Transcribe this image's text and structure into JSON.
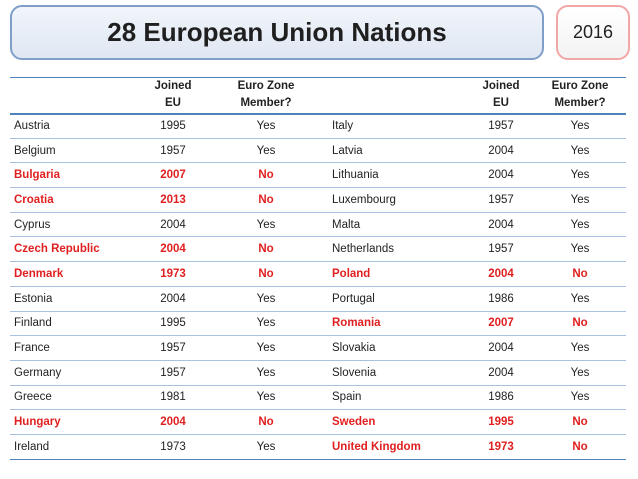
{
  "header": {
    "title": "28 European Union Nations",
    "year": "2016"
  },
  "table": {
    "columns": {
      "joined_line1": "Joined",
      "joined_line2": "EU",
      "euro_line1": "Euro Zone",
      "euro_line2": "Member?"
    },
    "highlight_color": "#e02020",
    "rows": [
      {
        "left": {
          "country": "Austria",
          "joined": "1995",
          "euro": "Yes",
          "highlight": false
        },
        "right": {
          "country": "Italy",
          "joined": "1957",
          "euro": "Yes",
          "highlight": false
        }
      },
      {
        "left": {
          "country": "Belgium",
          "joined": "1957",
          "euro": "Yes",
          "highlight": false
        },
        "right": {
          "country": "Latvia",
          "joined": "2004",
          "euro": "Yes",
          "highlight": false
        }
      },
      {
        "left": {
          "country": "Bulgaria",
          "joined": "2007",
          "euro": "No",
          "highlight": true
        },
        "right": {
          "country": "Lithuania",
          "joined": "2004",
          "euro": "Yes",
          "highlight": false
        }
      },
      {
        "left": {
          "country": "Croatia",
          "joined": "2013",
          "euro": "No",
          "highlight": true
        },
        "right": {
          "country": "Luxembourg",
          "joined": "1957",
          "euro": "Yes",
          "highlight": false
        }
      },
      {
        "left": {
          "country": "Cyprus",
          "joined": "2004",
          "euro": "Yes",
          "highlight": false
        },
        "right": {
          "country": "Malta",
          "joined": "2004",
          "euro": "Yes",
          "highlight": false
        }
      },
      {
        "left": {
          "country": "Czech Republic",
          "joined": "2004",
          "euro": "No",
          "highlight": true
        },
        "right": {
          "country": "Netherlands",
          "joined": "1957",
          "euro": "Yes",
          "highlight": false
        }
      },
      {
        "left": {
          "country": "Denmark",
          "joined": "1973",
          "euro": "No",
          "highlight": true
        },
        "right": {
          "country": "Poland",
          "joined": "2004",
          "euro": "No",
          "highlight": true
        }
      },
      {
        "left": {
          "country": "Estonia",
          "joined": "2004",
          "euro": "Yes",
          "highlight": false
        },
        "right": {
          "country": "Portugal",
          "joined": "1986",
          "euro": "Yes",
          "highlight": false
        }
      },
      {
        "left": {
          "country": "Finland",
          "joined": "1995",
          "euro": "Yes",
          "highlight": false
        },
        "right": {
          "country": "Romania",
          "joined": "2007",
          "euro": "No",
          "highlight": true
        }
      },
      {
        "left": {
          "country": "France",
          "joined": "1957",
          "euro": "Yes",
          "highlight": false
        },
        "right": {
          "country": "Slovakia",
          "joined": "2004",
          "euro": "Yes",
          "highlight": false
        }
      },
      {
        "left": {
          "country": "Germany",
          "joined": "1957",
          "euro": "Yes",
          "highlight": false
        },
        "right": {
          "country": "Slovenia",
          "joined": "2004",
          "euro": "Yes",
          "highlight": false
        }
      },
      {
        "left": {
          "country": "Greece",
          "joined": "1981",
          "euro": "Yes",
          "highlight": false
        },
        "right": {
          "country": "Spain",
          "joined": "1986",
          "euro": "Yes",
          "highlight": false
        }
      },
      {
        "left": {
          "country": "Hungary",
          "joined": "2004",
          "euro": "No",
          "highlight": true
        },
        "right": {
          "country": "Sweden",
          "joined": "1995",
          "euro": "No",
          "highlight": true
        }
      },
      {
        "left": {
          "country": "Ireland",
          "joined": "1973",
          "euro": "Yes",
          "highlight": false
        },
        "right": {
          "country": "United Kingdom",
          "joined": "1973",
          "euro": "No",
          "highlight": true
        }
      }
    ]
  }
}
